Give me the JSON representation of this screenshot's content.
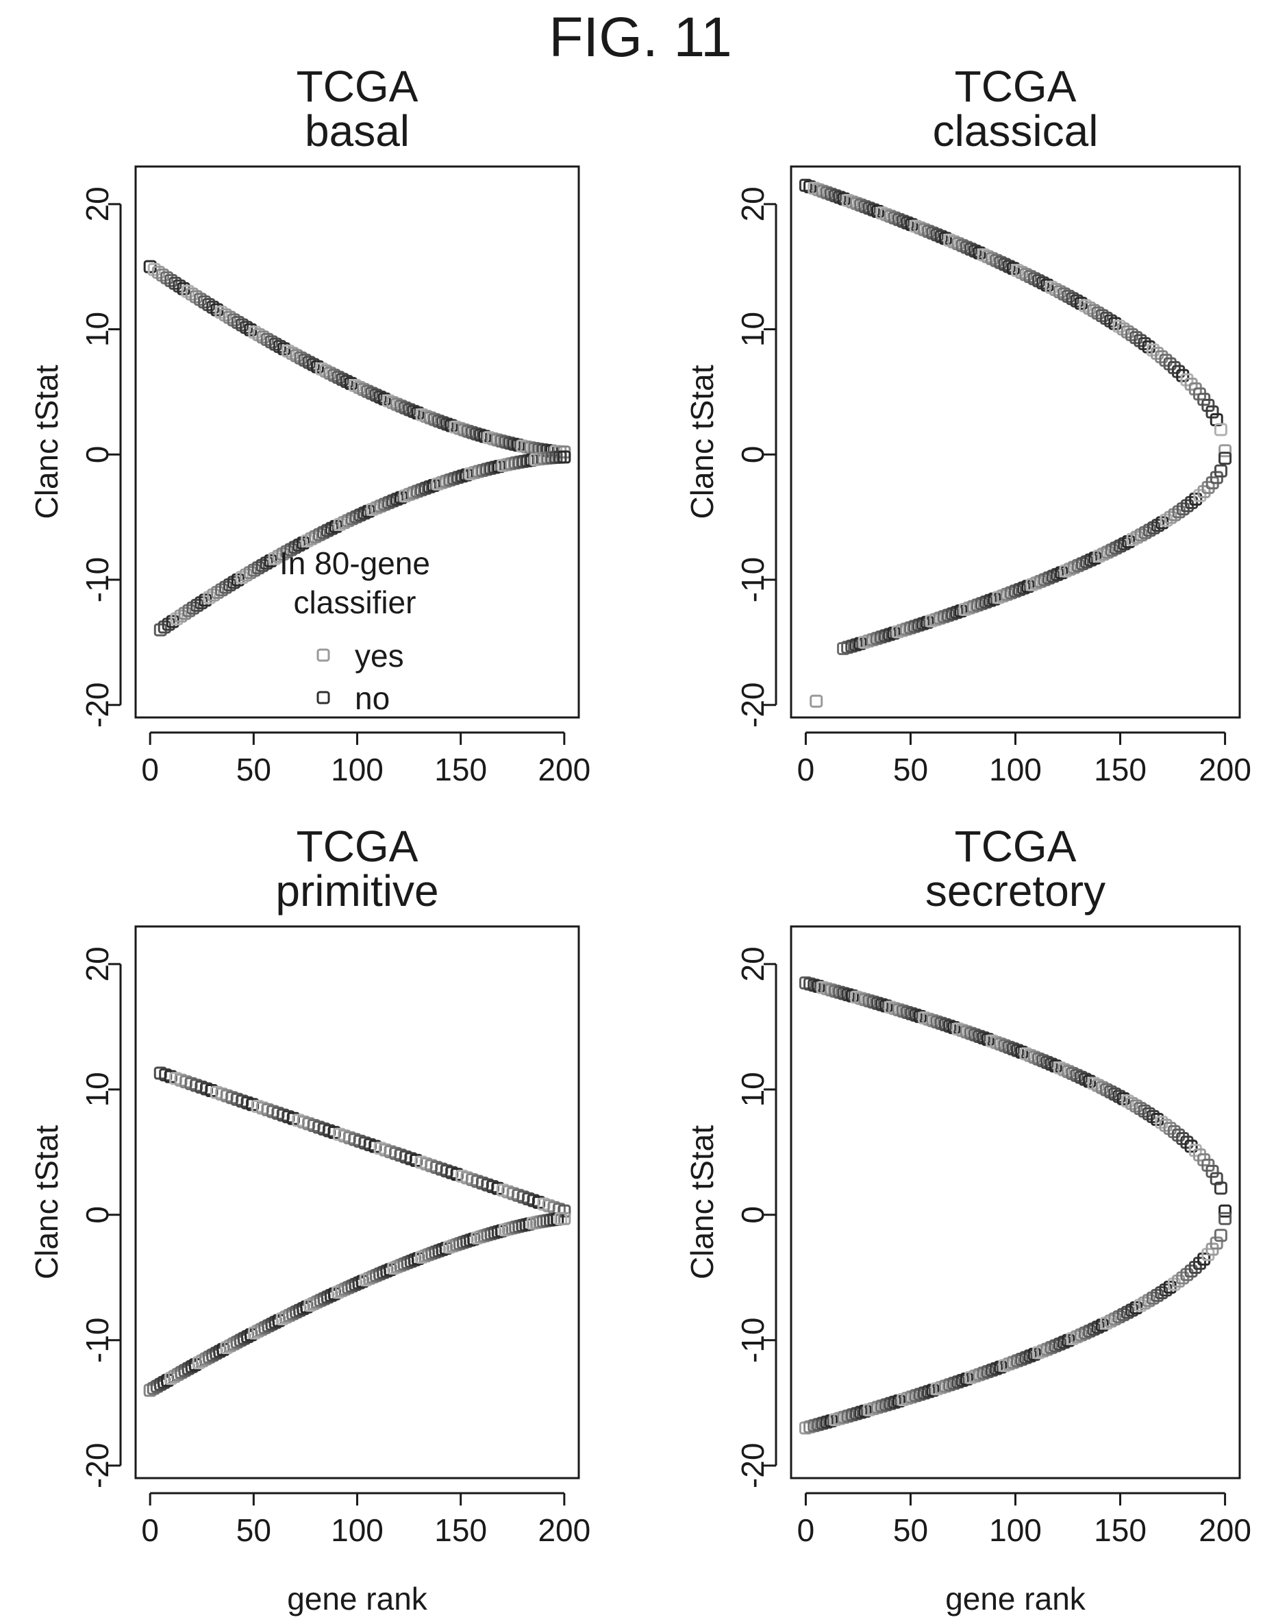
{
  "figure": {
    "title": "FIG. 11"
  },
  "legend": {
    "title_line1": "In 80-gene",
    "title_line2": "classifier",
    "entries": [
      {
        "label": "yes",
        "color": "#9a9a9a"
      },
      {
        "label": "no",
        "color": "#303030"
      }
    ]
  },
  "chart_data": [
    {
      "type": "scatter",
      "title_line1": "TCGA",
      "title_line2": "basal",
      "xlabel": "",
      "ylabel": "Clanc tStat",
      "xlim": [
        -7,
        207
      ],
      "ylim": [
        -21,
        23
      ],
      "xticks": [
        0,
        50,
        100,
        150,
        200
      ],
      "yticks": [
        -20,
        -10,
        0,
        10,
        20
      ],
      "series": [
        {
          "name": "upper",
          "shape": "upper",
          "x_start": 0,
          "x_end": 200,
          "y_start": 15,
          "y_end": 0.2,
          "curve": 1.5,
          "n": 100
        },
        {
          "name": "lower",
          "shape": "lower",
          "x_start": 5,
          "x_end": 200,
          "y_start": -14,
          "y_end": -0.2,
          "curve": 1.6,
          "n": 100
        }
      ]
    },
    {
      "type": "scatter",
      "title_line1": "TCGA",
      "title_line2": "classical",
      "xlabel": "",
      "ylabel": "Clanc tStat",
      "xlim": [
        -7,
        207
      ],
      "ylim": [
        -21,
        23
      ],
      "xticks": [
        0,
        50,
        100,
        150,
        200
      ],
      "yticks": [
        -20,
        -10,
        0,
        10,
        20
      ],
      "series": [
        {
          "name": "upper",
          "shape": "upper",
          "x_start": 0,
          "x_end": 200,
          "y_start": 21.5,
          "y_end": 0.3,
          "curve": 0.55,
          "n": 100
        },
        {
          "name": "lower",
          "shape": "lower",
          "x_start": 18,
          "x_end": 200,
          "y_start": -15.5,
          "y_end": -0.3,
          "curve": 0.6,
          "n": 92
        }
      ],
      "outliers": [
        {
          "x": 5,
          "y": -19.7
        }
      ]
    },
    {
      "type": "scatter",
      "title_line1": "TCGA",
      "title_line2": "primitive",
      "xlabel": "gene rank",
      "ylabel": "Clanc tStat",
      "xlim": [
        -7,
        207
      ],
      "ylim": [
        -21,
        23
      ],
      "xticks": [
        0,
        50,
        100,
        150,
        200
      ],
      "yticks": [
        -20,
        -10,
        0,
        10,
        20
      ],
      "series": [
        {
          "name": "upper",
          "shape": "upper",
          "x_start": 5,
          "x_end": 200,
          "y_start": 11.3,
          "y_end": 0.3,
          "curve": 1.0,
          "n": 80
        },
        {
          "name": "lower",
          "shape": "lower",
          "x_start": 0,
          "x_end": 200,
          "y_start": -14,
          "y_end": -0.3,
          "curve": 1.4,
          "n": 120
        }
      ]
    },
    {
      "type": "scatter",
      "title_line1": "TCGA",
      "title_line2": "secretory",
      "xlabel": "gene rank",
      "ylabel": "Clanc tStat",
      "xlim": [
        -7,
        207
      ],
      "ylim": [
        -21,
        23
      ],
      "xticks": [
        0,
        50,
        100,
        150,
        200
      ],
      "yticks": [
        -20,
        -10,
        0,
        10,
        20
      ],
      "series": [
        {
          "name": "upper",
          "shape": "upper",
          "x_start": 0,
          "x_end": 200,
          "y_start": 18.5,
          "y_end": 0.3,
          "curve": 0.5,
          "n": 100
        },
        {
          "name": "lower",
          "shape": "lower",
          "x_start": 0,
          "x_end": 200,
          "y_start": -17,
          "y_end": -0.3,
          "curve": 0.55,
          "n": 100
        }
      ]
    }
  ]
}
